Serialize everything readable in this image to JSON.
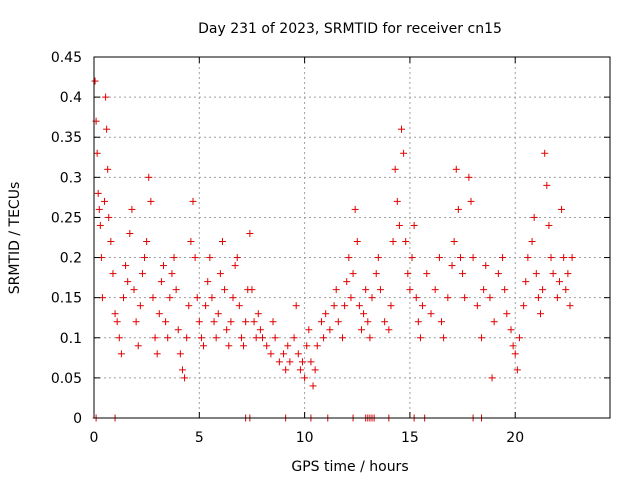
{
  "chart_data": {
    "type": "scatter",
    "title": "Day 231 of 2023, SRMTID for receiver cn15",
    "xlabel": "GPS time / hours",
    "ylabel": "SRMTID / TECUs",
    "xlim": [
      0,
      24.5
    ],
    "ylim": [
      0,
      0.45
    ],
    "xticks": [
      0,
      5,
      10,
      15,
      20
    ],
    "xtick_labels": [
      "0",
      "5",
      "10",
      "15",
      "20"
    ],
    "yticks": [
      0,
      0.05,
      0.1,
      0.15,
      0.2,
      0.25,
      0.3,
      0.35,
      0.4,
      0.45
    ],
    "ytick_labels": [
      "0",
      "0.05",
      "0.1",
      "0.15",
      "0.2",
      "0.25",
      "0.3",
      "0.35",
      "0.4",
      "0.45"
    ],
    "grid": true,
    "marker": "+",
    "color": "#e00000",
    "series": [
      {
        "name": "SRMTID",
        "points": [
          [
            0.05,
            0.42
          ],
          [
            0.1,
            0.37
          ],
          [
            0.15,
            0.33
          ],
          [
            0.2,
            0.28
          ],
          [
            0.25,
            0.26
          ],
          [
            0.3,
            0.24
          ],
          [
            0.35,
            0.2
          ],
          [
            0.4,
            0.15
          ],
          [
            0.5,
            0.27
          ],
          [
            0.55,
            0.4
          ],
          [
            0.6,
            0.36
          ],
          [
            0.65,
            0.31
          ],
          [
            0.7,
            0.25
          ],
          [
            0.8,
            0.22
          ],
          [
            0.9,
            0.18
          ],
          [
            1.0,
            0.13
          ],
          [
            1.1,
            0.12
          ],
          [
            1.2,
            0.1
          ],
          [
            1.3,
            0.08
          ],
          [
            1.4,
            0.15
          ],
          [
            1.5,
            0.19
          ],
          [
            1.6,
            0.17
          ],
          [
            1.7,
            0.23
          ],
          [
            1.8,
            0.26
          ],
          [
            1.9,
            0.16
          ],
          [
            2.0,
            0.12
          ],
          [
            2.1,
            0.09
          ],
          [
            2.2,
            0.14
          ],
          [
            2.3,
            0.18
          ],
          [
            2.4,
            0.2
          ],
          [
            2.5,
            0.22
          ],
          [
            2.6,
            0.3
          ],
          [
            2.7,
            0.27
          ],
          [
            2.8,
            0.15
          ],
          [
            2.9,
            0.1
          ],
          [
            3.0,
            0.08
          ],
          [
            3.1,
            0.13
          ],
          [
            3.2,
            0.17
          ],
          [
            3.3,
            0.19
          ],
          [
            3.4,
            0.12
          ],
          [
            3.5,
            0.1
          ],
          [
            3.6,
            0.15
          ],
          [
            3.7,
            0.18
          ],
          [
            3.8,
            0.2
          ],
          [
            3.9,
            0.16
          ],
          [
            4.0,
            0.11
          ],
          [
            4.1,
            0.08
          ],
          [
            4.2,
            0.06
          ],
          [
            4.3,
            0.05
          ],
          [
            4.4,
            0.1
          ],
          [
            4.5,
            0.14
          ],
          [
            4.6,
            0.22
          ],
          [
            4.7,
            0.27
          ],
          [
            4.8,
            0.2
          ],
          [
            4.9,
            0.15
          ],
          [
            5.0,
            0.12
          ],
          [
            5.1,
            0.1
          ],
          [
            5.2,
            0.09
          ],
          [
            5.3,
            0.14
          ],
          [
            5.4,
            0.17
          ],
          [
            5.5,
            0.2
          ],
          [
            5.6,
            0.15
          ],
          [
            5.7,
            0.12
          ],
          [
            5.8,
            0.1
          ],
          [
            5.9,
            0.13
          ],
          [
            6.0,
            0.18
          ],
          [
            6.1,
            0.22
          ],
          [
            6.2,
            0.16
          ],
          [
            6.3,
            0.11
          ],
          [
            6.4,
            0.09
          ],
          [
            6.5,
            0.12
          ],
          [
            6.6,
            0.15
          ],
          [
            6.7,
            0.19
          ],
          [
            6.8,
            0.2
          ],
          [
            6.9,
            0.14
          ],
          [
            7.0,
            0.1
          ],
          [
            7.1,
            0.09
          ],
          [
            7.2,
            0.12
          ],
          [
            7.3,
            0.16
          ],
          [
            7.4,
            0.23
          ],
          [
            7.5,
            0.16
          ],
          [
            7.6,
            0.12
          ],
          [
            7.7,
            0.1
          ],
          [
            7.8,
            0.13
          ],
          [
            7.9,
            0.11
          ],
          [
            8.0,
            0.1
          ],
          [
            8.2,
            0.09
          ],
          [
            8.4,
            0.08
          ],
          [
            8.5,
            0.12
          ],
          [
            8.6,
            0.1
          ],
          [
            8.8,
            0.07
          ],
          [
            9.0,
            0.08
          ],
          [
            9.1,
            0.06
          ],
          [
            9.2,
            0.09
          ],
          [
            9.3,
            0.07
          ],
          [
            9.5,
            0.1
          ],
          [
            9.6,
            0.14
          ],
          [
            9.7,
            0.08
          ],
          [
            9.8,
            0.06
          ],
          [
            9.9,
            0.07
          ],
          [
            10.0,
            0.05
          ],
          [
            10.1,
            0.09
          ],
          [
            10.2,
            0.11
          ],
          [
            10.3,
            0.07
          ],
          [
            10.4,
            0.04
          ],
          [
            10.5,
            0.06
          ],
          [
            10.6,
            0.09
          ],
          [
            10.8,
            0.12
          ],
          [
            10.9,
            0.1
          ],
          [
            11.0,
            0.13
          ],
          [
            11.2,
            0.11
          ],
          [
            11.4,
            0.14
          ],
          [
            11.5,
            0.16
          ],
          [
            11.6,
            0.12
          ],
          [
            11.8,
            0.1
          ],
          [
            11.9,
            0.14
          ],
          [
            12.0,
            0.17
          ],
          [
            12.1,
            0.2
          ],
          [
            12.2,
            0.15
          ],
          [
            12.3,
            0.18
          ],
          [
            12.4,
            0.26
          ],
          [
            12.5,
            0.22
          ],
          [
            12.6,
            0.14
          ],
          [
            12.7,
            0.11
          ],
          [
            12.8,
            0.13
          ],
          [
            12.9,
            0.16
          ],
          [
            13.0,
            0.12
          ],
          [
            13.1,
            0.1
          ],
          [
            13.2,
            0.15
          ],
          [
            13.4,
            0.18
          ],
          [
            13.5,
            0.2
          ],
          [
            13.6,
            0.16
          ],
          [
            13.8,
            0.12
          ],
          [
            14.0,
            0.11
          ],
          [
            14.1,
            0.14
          ],
          [
            14.2,
            0.22
          ],
          [
            14.3,
            0.31
          ],
          [
            14.4,
            0.27
          ],
          [
            14.5,
            0.24
          ],
          [
            14.6,
            0.36
          ],
          [
            14.7,
            0.33
          ],
          [
            14.8,
            0.22
          ],
          [
            14.9,
            0.18
          ],
          [
            15.0,
            0.16
          ],
          [
            15.1,
            0.2
          ],
          [
            15.2,
            0.24
          ],
          [
            15.3,
            0.15
          ],
          [
            15.4,
            0.12
          ],
          [
            15.5,
            0.1
          ],
          [
            15.6,
            0.14
          ],
          [
            15.8,
            0.18
          ],
          [
            16.0,
            0.13
          ],
          [
            16.2,
            0.16
          ],
          [
            16.4,
            0.2
          ],
          [
            16.5,
            0.12
          ],
          [
            16.6,
            0.1
          ],
          [
            16.8,
            0.15
          ],
          [
            17.0,
            0.19
          ],
          [
            17.1,
            0.22
          ],
          [
            17.2,
            0.31
          ],
          [
            17.3,
            0.26
          ],
          [
            17.4,
            0.2
          ],
          [
            17.5,
            0.18
          ],
          [
            17.6,
            0.15
          ],
          [
            17.8,
            0.3
          ],
          [
            17.9,
            0.27
          ],
          [
            18.0,
            0.2
          ],
          [
            18.2,
            0.14
          ],
          [
            18.4,
            0.1
          ],
          [
            18.5,
            0.16
          ],
          [
            18.6,
            0.19
          ],
          [
            18.8,
            0.15
          ],
          [
            18.9,
            0.05
          ],
          [
            19.0,
            0.12
          ],
          [
            19.2,
            0.18
          ],
          [
            19.4,
            0.2
          ],
          [
            19.5,
            0.16
          ],
          [
            19.6,
            0.13
          ],
          [
            19.8,
            0.11
          ],
          [
            19.9,
            0.09
          ],
          [
            20.0,
            0.08
          ],
          [
            20.1,
            0.06
          ],
          [
            20.2,
            0.1
          ],
          [
            20.4,
            0.14
          ],
          [
            20.5,
            0.17
          ],
          [
            20.6,
            0.2
          ],
          [
            20.8,
            0.22
          ],
          [
            20.9,
            0.25
          ],
          [
            21.0,
            0.18
          ],
          [
            21.1,
            0.15
          ],
          [
            21.2,
            0.13
          ],
          [
            21.3,
            0.16
          ],
          [
            21.4,
            0.33
          ],
          [
            21.5,
            0.29
          ],
          [
            21.6,
            0.24
          ],
          [
            21.7,
            0.2
          ],
          [
            21.8,
            0.18
          ],
          [
            22.0,
            0.15
          ],
          [
            22.1,
            0.17
          ],
          [
            22.2,
            0.26
          ],
          [
            22.3,
            0.2
          ],
          [
            22.4,
            0.16
          ],
          [
            22.5,
            0.18
          ],
          [
            22.6,
            0.14
          ],
          [
            22.7,
            0.2
          ]
        ],
        "zero_points_x": [
          0.1,
          1.0,
          7.2,
          7.4,
          9.1,
          10.3,
          11.1,
          12.3,
          12.9,
          13.0,
          13.1,
          13.2,
          13.3,
          14.0,
          15.2,
          15.7,
          18.0,
          18.4
        ]
      }
    ]
  }
}
